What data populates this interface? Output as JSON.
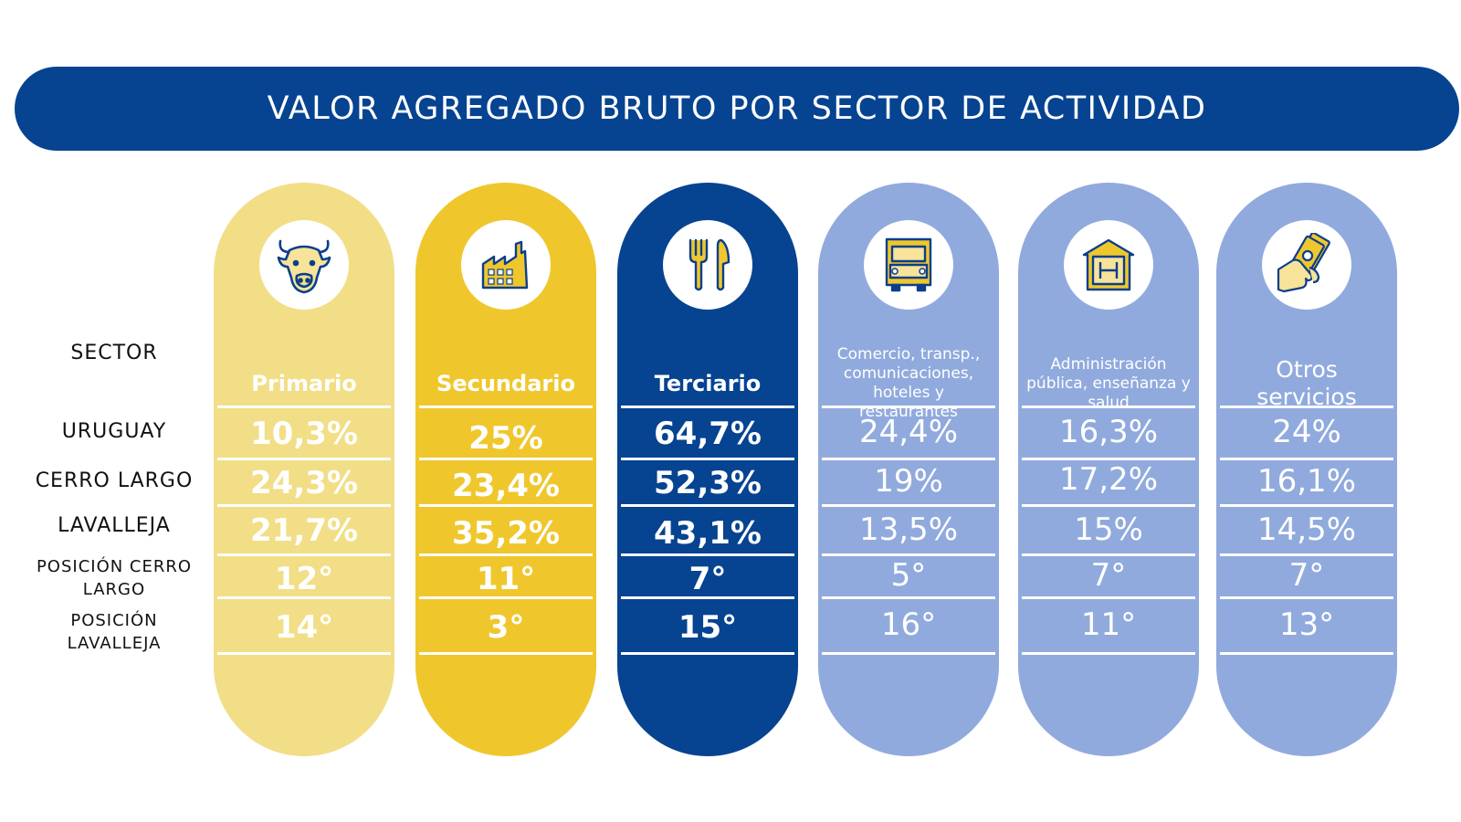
{
  "title": "VALOR AGREGADO BRUTO POR SECTOR DE ACTIVIDAD",
  "row_labels": {
    "sector": "SECTOR",
    "uruguay": "URUGUAY",
    "cerro_largo": "CERRO LARGO",
    "lavalleja": "LAVALLEJA",
    "pos_cerro_largo": "POSICIÓN CERRO LARGO",
    "pos_lavalleja": "POSICIÓN LAVALLEJA"
  },
  "sectors": [
    {
      "name": "Primario",
      "icon": "cow-icon",
      "color": "#F2DE86",
      "text_color": "#ffffff",
      "uruguay": "10,3%",
      "cerro_largo": "24,3%",
      "lavalleja": "21,7%",
      "pos_cerro_largo": "12°",
      "pos_lavalleja": "14°"
    },
    {
      "name": "Secundario",
      "icon": "factory-icon",
      "color": "#EFC72D",
      "text_color": "#ffffff",
      "uruguay": "25%",
      "cerro_largo": "23,4%",
      "lavalleja": "35,2%",
      "pos_cerro_largo": "11°",
      "pos_lavalleja": "3°"
    },
    {
      "name": "Terciario",
      "icon": "fork-knife-icon",
      "color": "#064391",
      "text_color": "#ffffff",
      "uruguay": "64,7%",
      "cerro_largo": "52,3%",
      "lavalleja": "43,1%",
      "pos_cerro_largo": "7°",
      "pos_lavalleja": "15°"
    },
    {
      "name": "Comercio, transp., comunicaciones, hoteles y restaurantes",
      "icon": "truck-icon",
      "color": "#91AADD",
      "text_color": "#ffffff",
      "uruguay": "24,4%",
      "cerro_largo": "19%",
      "lavalleja": "13,5%",
      "pos_cerro_largo": "5°",
      "pos_lavalleja": "16°"
    },
    {
      "name": "Administración pública, enseñanza y salud",
      "icon": "hospital-icon",
      "color": "#91AADD",
      "text_color": "#ffffff",
      "uruguay": "16,3%",
      "cerro_largo": "17,2%",
      "lavalleja": "15%",
      "pos_cerro_largo": "7°",
      "pos_lavalleja": "11°"
    },
    {
      "name": "Otros servicios",
      "icon": "money-hand-icon",
      "color": "#91AADD",
      "text_color": "#ffffff",
      "uruguay": "24%",
      "cerro_largo": "16,1%",
      "lavalleja": "14,5%",
      "pos_cerro_largo": "7°",
      "pos_lavalleja": "13°"
    }
  ]
}
